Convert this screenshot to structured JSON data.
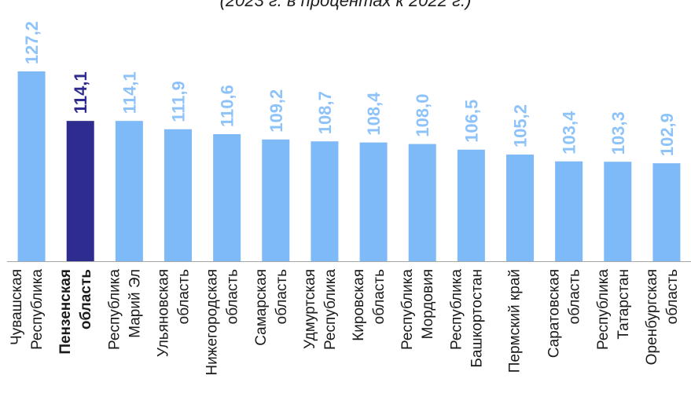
{
  "subtitle": "(2023 г. в процентах к 2022 г.)",
  "colors": {
    "bar": "#7eb9f8",
    "highlight_bar": "#2e2d8f",
    "value_label": "#8ec3fa",
    "highlight_label": "#2e2d8f",
    "axis": "#a6a6a6"
  },
  "chart_data": {
    "type": "bar",
    "categories": [
      [
        "Чувашская",
        "Республика"
      ],
      [
        "Пензенская",
        "область"
      ],
      [
        "Республика",
        "Марий Эл"
      ],
      [
        "Ульяновская",
        "область"
      ],
      [
        "Нижегородская",
        "область"
      ],
      [
        "Самарская",
        "область"
      ],
      [
        "Удмуртская",
        "Республика"
      ],
      [
        "Кировская",
        "область"
      ],
      [
        "Республика",
        "Мордовия"
      ],
      [
        "Республика",
        "Башкортостан"
      ],
      [
        "Пермский край"
      ],
      [
        "Саратовская",
        "область"
      ],
      [
        "Республика",
        "Татарстан"
      ],
      [
        "Оренбургская",
        "область"
      ]
    ],
    "values": [
      127.2,
      114.1,
      114.1,
      111.9,
      110.6,
      109.2,
      108.7,
      108.4,
      108.0,
      106.5,
      105.2,
      103.4,
      103.3,
      102.9
    ],
    "value_labels": [
      "127,2",
      "114,1",
      "114,1",
      "111,9",
      "110,6",
      "109,2",
      "108,7",
      "108,4",
      "108,0",
      "106,5",
      "105,2",
      "103,4",
      "103,3",
      "102,9"
    ],
    "highlight_index": 1,
    "title": "",
    "xlabel": "",
    "ylabel": "",
    "ylim": [
      77,
      130
    ],
    "grid": false,
    "legend": "none"
  }
}
